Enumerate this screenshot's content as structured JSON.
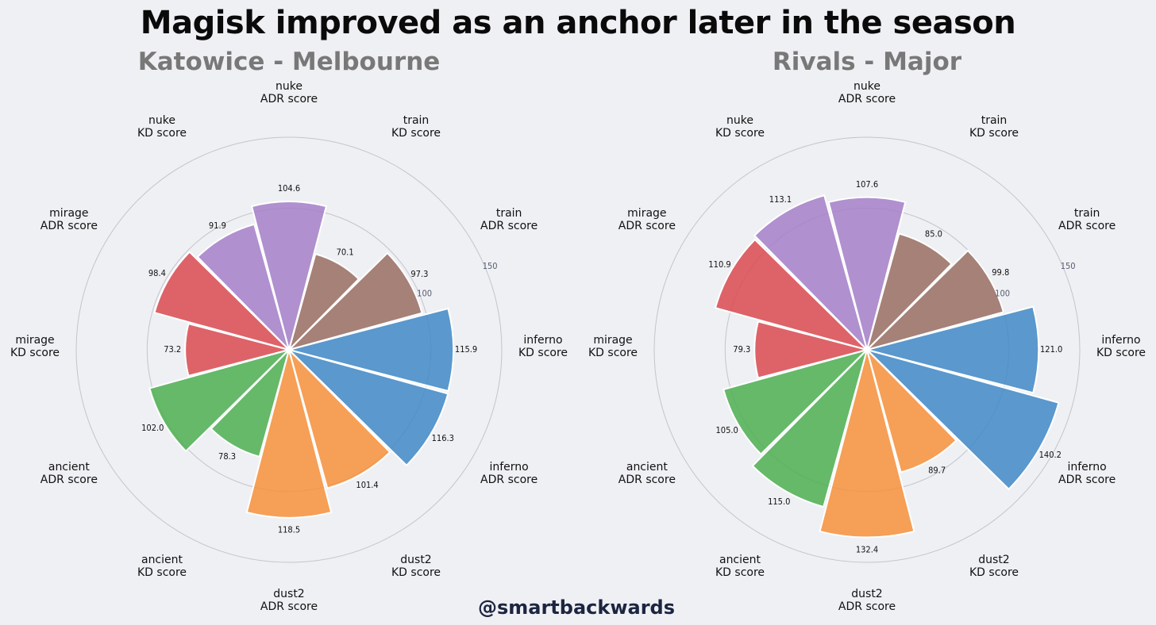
{
  "title": "Magisk improved as an anchor later in the season",
  "credit": "@smartbackwards",
  "colors": {
    "inferno": "#3f88c5",
    "train": "#986d60",
    "nuke": "#a47fc8",
    "mirage": "#d94a50",
    "ancient": "#4caf50",
    "dust2": "#f7903a",
    "grid": "#c4c4cc",
    "background": "#eff0f4"
  },
  "chart_data": [
    {
      "type": "polar-bar",
      "title": "Katowice - Melbourne",
      "rmax": 150,
      "rticks": [
        "100",
        "150"
      ],
      "categories": [
        {
          "map": "inferno",
          "metric": "KD score",
          "value": 115.9,
          "label": "115.9"
        },
        {
          "map": "train",
          "metric": "ADR score",
          "value": 97.3,
          "label": "97.3"
        },
        {
          "map": "train",
          "metric": "KD score",
          "value": 70.1,
          "label": "70.1"
        },
        {
          "map": "nuke",
          "metric": "ADR score",
          "value": 104.6,
          "label": "104.6"
        },
        {
          "map": "nuke",
          "metric": "KD score",
          "value": 91.9,
          "label": "91.9"
        },
        {
          "map": "mirage",
          "metric": "ADR score",
          "value": 98.4,
          "label": "98.4"
        },
        {
          "map": "mirage",
          "metric": "KD score",
          "value": 73.2,
          "label": "73.2"
        },
        {
          "map": "ancient",
          "metric": "ADR score",
          "value": 102.0,
          "label": "102.0"
        },
        {
          "map": "ancient",
          "metric": "KD score",
          "value": 78.3,
          "label": "78.3"
        },
        {
          "map": "dust2",
          "metric": "ADR score",
          "value": 118.5,
          "label": "118.5"
        },
        {
          "map": "dust2",
          "metric": "KD score",
          "value": 101.4,
          "label": "101.4"
        },
        {
          "map": "inferno",
          "metric": "ADR score",
          "value": 116.3,
          "label": "116.3"
        }
      ]
    },
    {
      "type": "polar-bar",
      "title": "Rivals - Major",
      "rmax": 150,
      "rticks": [
        "100",
        "150"
      ],
      "categories": [
        {
          "map": "inferno",
          "metric": "KD score",
          "value": 121.0,
          "label": "121.0"
        },
        {
          "map": "train",
          "metric": "ADR score",
          "value": 99.8,
          "label": "99.8"
        },
        {
          "map": "train",
          "metric": "KD score",
          "value": 85.0,
          "label": "85.0"
        },
        {
          "map": "nuke",
          "metric": "ADR score",
          "value": 107.6,
          "label": "107.6"
        },
        {
          "map": "nuke",
          "metric": "KD score",
          "value": 113.1,
          "label": "113.1"
        },
        {
          "map": "mirage",
          "metric": "ADR score",
          "value": 110.9,
          "label": "110.9"
        },
        {
          "map": "mirage",
          "metric": "KD score",
          "value": 79.3,
          "label": "79.3"
        },
        {
          "map": "ancient",
          "metric": "ADR score",
          "value": 105.0,
          "label": "105.0"
        },
        {
          "map": "ancient",
          "metric": "KD score",
          "value": 115.0,
          "label": "115.0"
        },
        {
          "map": "dust2",
          "metric": "ADR score",
          "value": 132.4,
          "label": "132.4"
        },
        {
          "map": "dust2",
          "metric": "KD score",
          "value": 89.7,
          "label": "89.7"
        },
        {
          "map": "inferno",
          "metric": "ADR score",
          "value": 140.2,
          "label": "140.2"
        }
      ]
    }
  ]
}
